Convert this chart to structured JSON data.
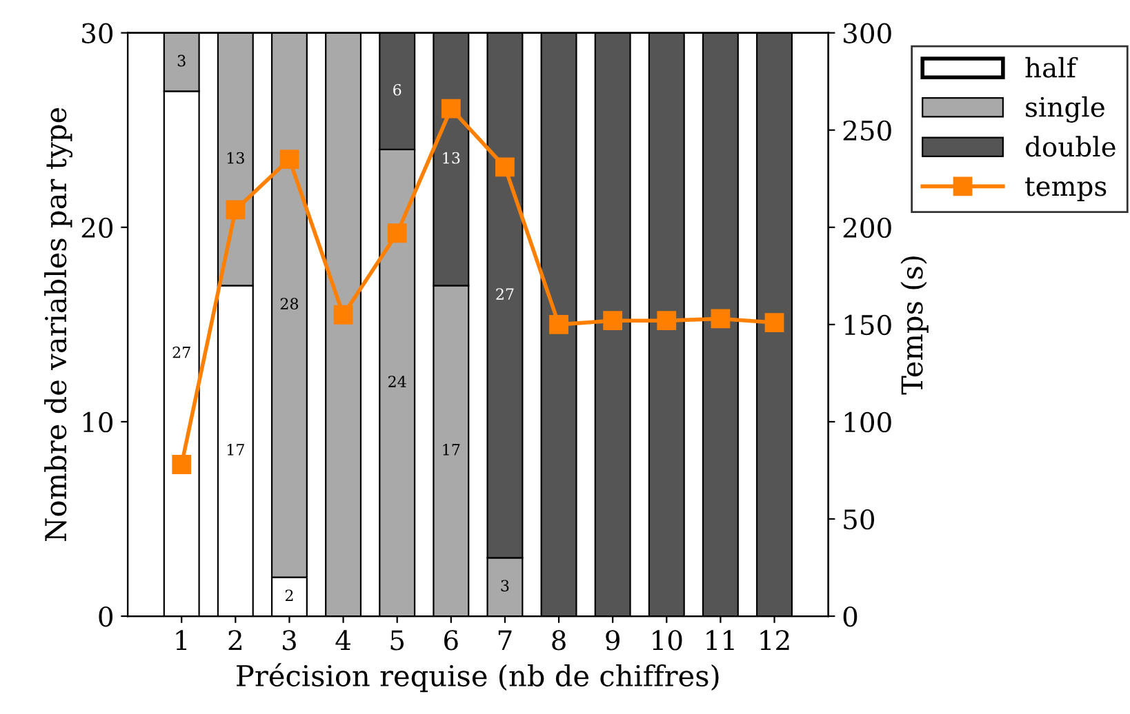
{
  "chart_data": {
    "type": "bar",
    "stacked": true,
    "xlabel": "Précision requise (nb de chiffres)",
    "ylabel": "Nombre de variables par type",
    "y2label": "Temps (s)",
    "categories": [
      "1",
      "2",
      "3",
      "4",
      "5",
      "6",
      "7",
      "8",
      "9",
      "10",
      "11",
      "12"
    ],
    "series": [
      {
        "name": "half",
        "color": "#ffffff",
        "values": [
          27,
          17,
          2,
          0,
          0,
          0,
          0,
          0,
          0,
          0,
          0,
          0
        ],
        "value_labels": [
          "27",
          "17",
          "2",
          null,
          null,
          null,
          null,
          null,
          null,
          null,
          null,
          null
        ]
      },
      {
        "name": "single",
        "color": "#a9a9a9",
        "values": [
          3,
          13,
          28,
          30,
          24,
          17,
          3,
          0,
          0,
          0,
          0,
          0
        ],
        "value_labels": [
          "3",
          "13",
          "28",
          null,
          "24",
          "17",
          "3",
          null,
          null,
          null,
          null,
          null
        ]
      },
      {
        "name": "double",
        "color": "#555555",
        "values": [
          0,
          0,
          0,
          0,
          6,
          13,
          27,
          30,
          30,
          30,
          30,
          30
        ],
        "value_labels": [
          null,
          null,
          null,
          null,
          "6",
          "13",
          "27",
          null,
          null,
          null,
          null,
          null
        ]
      },
      {
        "name": "temps",
        "type": "line",
        "axis": "y2",
        "color": "#ff8000",
        "marker": "square",
        "values": [
          78,
          209,
          235,
          155,
          197,
          261,
          231,
          150,
          152,
          152,
          153,
          151
        ]
      }
    ],
    "ylim": [
      0,
      30
    ],
    "yticks": [
      0,
      10,
      20,
      30
    ],
    "y2lim": [
      0,
      300
    ],
    "y2ticks": [
      0,
      50,
      100,
      150,
      200,
      250,
      300
    ],
    "legend": "top right",
    "grid": false
  }
}
